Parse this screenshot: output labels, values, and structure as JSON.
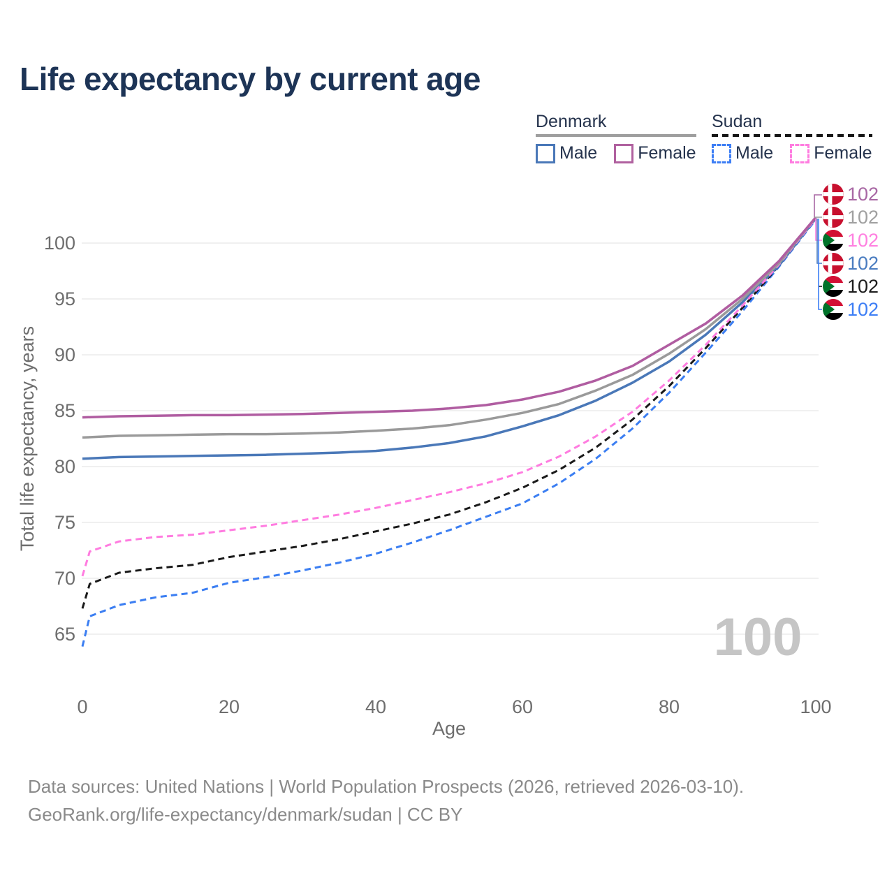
{
  "title": "Life expectancy by current age",
  "legend": {
    "groups": [
      {
        "label": "Denmark",
        "line_style": "solid",
        "underline_color": "#9e9e9e",
        "items": [
          {
            "label": "Male",
            "color": "#4a78b8",
            "dashed": false
          },
          {
            "label": "Female",
            "color": "#b0619f",
            "dashed": false
          }
        ]
      },
      {
        "label": "Sudan",
        "line_style": "dashed",
        "underline_color": "#151515",
        "items": [
          {
            "label": "Male",
            "color": "#3d7ef5",
            "dashed": true
          },
          {
            "label": "Female",
            "color": "#ff7ce0",
            "dashed": true
          }
        ]
      }
    ]
  },
  "watermark": "100",
  "footer": {
    "line1": "Data sources: United Nations | World Population Prospects (2026, retrieved 2026-03-10).",
    "line2": "GeoRank.org/life-expectancy/denmark/sudan | CC BY"
  },
  "flags": {
    "denmark": {
      "red": "#C8102E",
      "cross": "#ffffff"
    },
    "sudan": {
      "red": "#D21034",
      "white": "#ffffff",
      "black": "#000000",
      "green": "#007229"
    }
  },
  "chart_data": {
    "type": "line",
    "title": "Life expectancy by current age",
    "xlabel": "Age",
    "ylabel": "Total life expectancy, years",
    "x_ticks": [
      0,
      20,
      40,
      60,
      80,
      100
    ],
    "y_ticks": [
      65,
      70,
      75,
      80,
      85,
      90,
      95,
      100
    ],
    "xlim": [
      0,
      100
    ],
    "ylim": [
      63,
      103
    ],
    "grid": "horizontal-only",
    "legend_position": "top-right",
    "series": [
      {
        "name": "Denmark Female",
        "color": "#b05da1",
        "dashed": false,
        "end_label": "102",
        "end_label_color": "#a867a4",
        "flag": "denmark",
        "points": [
          [
            0,
            84.4
          ],
          [
            5,
            84.5
          ],
          [
            10,
            84.55
          ],
          [
            15,
            84.6
          ],
          [
            20,
            84.6
          ],
          [
            25,
            84.65
          ],
          [
            30,
            84.7
          ],
          [
            35,
            84.8
          ],
          [
            40,
            84.9
          ],
          [
            45,
            85.0
          ],
          [
            50,
            85.2
          ],
          [
            55,
            85.5
          ],
          [
            60,
            86.0
          ],
          [
            65,
            86.7
          ],
          [
            70,
            87.7
          ],
          [
            75,
            89.0
          ],
          [
            80,
            90.9
          ],
          [
            85,
            92.8
          ],
          [
            90,
            95.3
          ],
          [
            95,
            98.4
          ],
          [
            100,
            102.3
          ]
        ]
      },
      {
        "name": "Denmark Both sexes",
        "color": "#9a9a9a",
        "dashed": false,
        "end_label": "102",
        "end_label_color": "#a0a0a0",
        "flag": "denmark",
        "points": [
          [
            0,
            82.6
          ],
          [
            5,
            82.75
          ],
          [
            10,
            82.8
          ],
          [
            15,
            82.85
          ],
          [
            20,
            82.9
          ],
          [
            25,
            82.9
          ],
          [
            30,
            82.95
          ],
          [
            35,
            83.05
          ],
          [
            40,
            83.2
          ],
          [
            45,
            83.4
          ],
          [
            50,
            83.7
          ],
          [
            55,
            84.2
          ],
          [
            60,
            84.8
          ],
          [
            65,
            85.6
          ],
          [
            70,
            86.8
          ],
          [
            75,
            88.2
          ],
          [
            80,
            90.1
          ],
          [
            85,
            92.3
          ],
          [
            90,
            95.0
          ],
          [
            95,
            98.2
          ],
          [
            100,
            102.3
          ]
        ]
      },
      {
        "name": "Sudan Female",
        "color": "#ff7ce0",
        "dashed": true,
        "end_label": "102",
        "end_label_color": "#ff80e0",
        "flag": "sudan",
        "points": [
          [
            0,
            70.2
          ],
          [
            1,
            72.4
          ],
          [
            5,
            73.3
          ],
          [
            10,
            73.7
          ],
          [
            15,
            73.9
          ],
          [
            20,
            74.3
          ],
          [
            25,
            74.7
          ],
          [
            30,
            75.2
          ],
          [
            35,
            75.7
          ],
          [
            40,
            76.3
          ],
          [
            45,
            77.0
          ],
          [
            50,
            77.7
          ],
          [
            55,
            78.5
          ],
          [
            60,
            79.5
          ],
          [
            65,
            80.9
          ],
          [
            70,
            82.7
          ],
          [
            75,
            84.9
          ],
          [
            80,
            87.7
          ],
          [
            85,
            90.9
          ],
          [
            90,
            94.4
          ],
          [
            95,
            98.1
          ],
          [
            100,
            102.2
          ]
        ]
      },
      {
        "name": "Denmark Male",
        "color": "#4a78b8",
        "dashed": false,
        "end_label": "102",
        "end_label_color": "#4a7cc0",
        "flag": "denmark",
        "points": [
          [
            0,
            80.7
          ],
          [
            5,
            80.85
          ],
          [
            10,
            80.9
          ],
          [
            15,
            80.95
          ],
          [
            20,
            81.0
          ],
          [
            25,
            81.05
          ],
          [
            30,
            81.15
          ],
          [
            35,
            81.25
          ],
          [
            40,
            81.4
          ],
          [
            45,
            81.7
          ],
          [
            50,
            82.1
          ],
          [
            55,
            82.7
          ],
          [
            60,
            83.6
          ],
          [
            65,
            84.6
          ],
          [
            70,
            85.9
          ],
          [
            75,
            87.5
          ],
          [
            80,
            89.4
          ],
          [
            85,
            91.8
          ],
          [
            90,
            94.7
          ],
          [
            95,
            98.0
          ],
          [
            100,
            102.2
          ]
        ]
      },
      {
        "name": "Sudan Both sexes",
        "color": "#1a1a1a",
        "dashed": true,
        "end_label": "102",
        "end_label_color": "#1c1c1c",
        "flag": "sudan",
        "points": [
          [
            0,
            67.3
          ],
          [
            1,
            69.5
          ],
          [
            5,
            70.5
          ],
          [
            10,
            70.9
          ],
          [
            15,
            71.2
          ],
          [
            20,
            71.9
          ],
          [
            25,
            72.4
          ],
          [
            30,
            72.9
          ],
          [
            35,
            73.5
          ],
          [
            40,
            74.2
          ],
          [
            45,
            74.9
          ],
          [
            50,
            75.7
          ],
          [
            55,
            76.8
          ],
          [
            60,
            78.1
          ],
          [
            65,
            79.7
          ],
          [
            70,
            81.7
          ],
          [
            75,
            84.2
          ],
          [
            80,
            87.2
          ],
          [
            85,
            90.6
          ],
          [
            90,
            94.2
          ],
          [
            95,
            98.0
          ],
          [
            100,
            102.2
          ]
        ]
      },
      {
        "name": "Sudan Male",
        "color": "#3b7ef2",
        "dashed": true,
        "end_label": "102",
        "end_label_color": "#3d7ef5",
        "flag": "sudan",
        "points": [
          [
            0,
            63.9
          ],
          [
            1,
            66.6
          ],
          [
            5,
            67.6
          ],
          [
            10,
            68.3
          ],
          [
            15,
            68.7
          ],
          [
            20,
            69.6
          ],
          [
            25,
            70.1
          ],
          [
            30,
            70.7
          ],
          [
            35,
            71.4
          ],
          [
            40,
            72.2
          ],
          [
            45,
            73.2
          ],
          [
            50,
            74.3
          ],
          [
            55,
            75.5
          ],
          [
            60,
            76.7
          ],
          [
            65,
            78.5
          ],
          [
            70,
            80.7
          ],
          [
            75,
            83.4
          ],
          [
            80,
            86.6
          ],
          [
            85,
            90.2
          ],
          [
            90,
            93.9
          ],
          [
            95,
            97.9
          ],
          [
            100,
            102.1
          ]
        ]
      }
    ]
  }
}
